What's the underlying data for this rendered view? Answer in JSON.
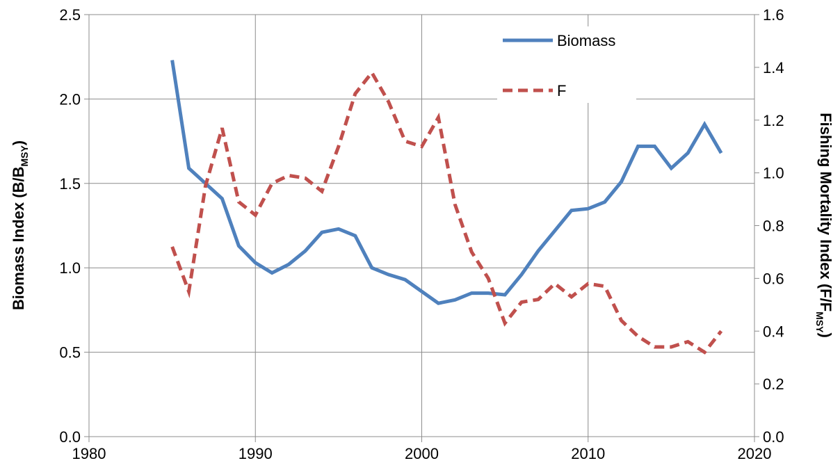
{
  "chart_data": {
    "type": "line",
    "x": [
      1985,
      1986,
      1987,
      1988,
      1989,
      1990,
      1991,
      1992,
      1993,
      1994,
      1995,
      1996,
      1997,
      1998,
      1999,
      2000,
      2001,
      2002,
      2003,
      2004,
      2005,
      2006,
      2007,
      2008,
      2009,
      2010,
      2011,
      2012,
      2013,
      2014,
      2015,
      2016,
      2017,
      2018
    ],
    "series": [
      {
        "name": "Biomass",
        "color": "#4f81bd",
        "dash": "solid",
        "axis": "y",
        "values": [
          2.23,
          1.59,
          1.5,
          1.41,
          1.13,
          1.03,
          0.97,
          1.02,
          1.1,
          1.21,
          1.23,
          1.19,
          1.0,
          0.96,
          0.93,
          0.86,
          0.79,
          0.81,
          0.85,
          0.85,
          0.84,
          0.96,
          1.1,
          1.22,
          1.34,
          1.35,
          1.39,
          1.51,
          1.72,
          1.72,
          1.59,
          1.68,
          1.85,
          1.68
        ]
      },
      {
        "name": "F",
        "color": "#c0504d",
        "dash": "dashed",
        "axis": "y2",
        "values": [
          0.72,
          0.55,
          0.95,
          1.17,
          0.89,
          0.84,
          0.96,
          0.99,
          0.98,
          0.93,
          1.1,
          1.3,
          1.38,
          1.27,
          1.12,
          1.1,
          1.21,
          0.88,
          0.7,
          0.6,
          0.43,
          0.51,
          0.52,
          0.58,
          0.53,
          0.58,
          0.57,
          0.44,
          0.38,
          0.34,
          0.34,
          0.36,
          0.32,
          0.4
        ]
      }
    ],
    "xlim": [
      1980,
      2020
    ],
    "xticks": [
      1980,
      1990,
      2000,
      2010,
      2020
    ],
    "ylim": [
      0,
      2.5
    ],
    "yticks": [
      {
        "value": 0,
        "label": "0.0"
      },
      0.5,
      {
        "value": 1,
        "label": "1.0"
      },
      1.5,
      {
        "value": 2,
        "label": "2.0"
      },
      2.5
    ],
    "y2lim": [
      0,
      1.6
    ],
    "y2ticks": [
      {
        "value": 0,
        "label": "0.0"
      },
      0.2,
      0.4,
      0.6,
      0.8,
      {
        "value": 1,
        "label": "1.0"
      },
      1.2,
      1.4,
      1.6
    ],
    "ylabel": {
      "text": "Biomass Index (B/B",
      "sub": "MSY",
      "end": ")"
    },
    "y2label": {
      "text": "Fishing Mortality Index (F/F",
      "sub": "MSY",
      "end": ")"
    },
    "grid": true,
    "legend": "upper right"
  }
}
